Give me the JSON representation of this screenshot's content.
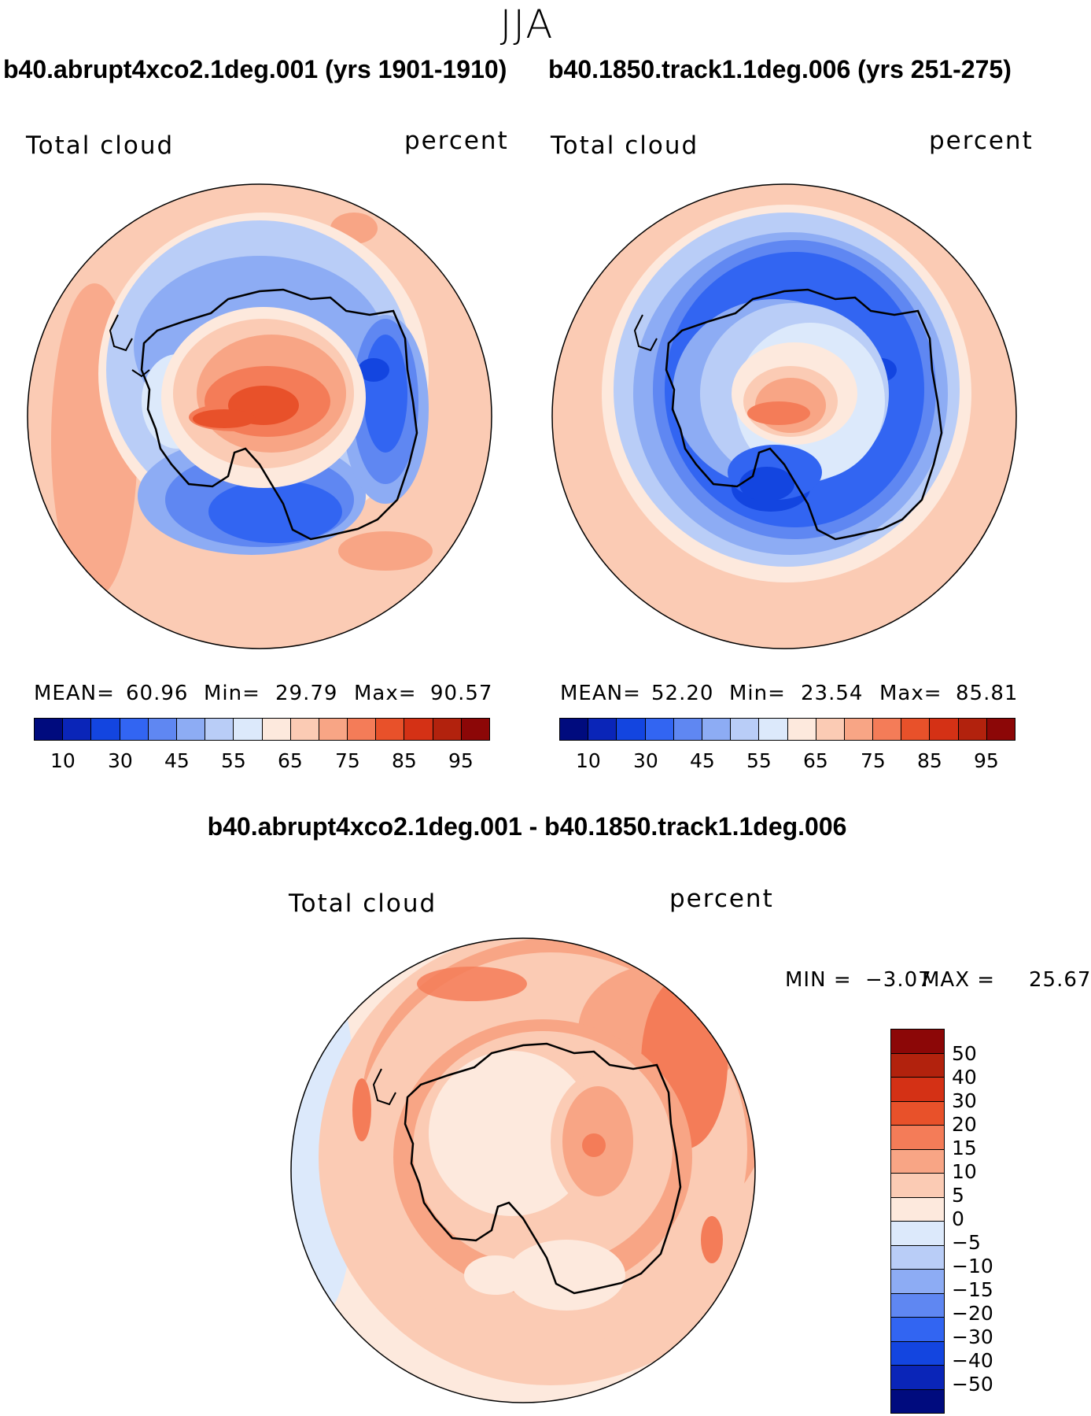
{
  "season": "JJA",
  "panels": [
    {
      "case_title": "b40.abrupt4xco2.1deg.001 (yrs 1901-1910)",
      "variable": "Total cloud",
      "units": "percent",
      "mean_label": "MEAN=",
      "mean": "60.96",
      "min_label": "Min=",
      "min": "29.79",
      "max_label": "Max=",
      "max": "90.57"
    },
    {
      "case_title": "b40.1850.track1.1deg.006 (yrs 251-275)",
      "variable": "Total cloud",
      "units": "percent",
      "mean_label": "MEAN=",
      "mean": "52.20",
      "min_label": "Min=",
      "min": "23.54",
      "max_label": "Max=",
      "max": "85.81"
    }
  ],
  "abs_colorbar": {
    "colors": [
      "#000b7e",
      "#0a25b8",
      "#1345e0",
      "#3265f2",
      "#5f87f2",
      "#8dacf4",
      "#b9cdf7",
      "#dce9fb",
      "#fde9dd",
      "#fbcbb4",
      "#f8a585",
      "#f47c58",
      "#e8512a",
      "#d43115",
      "#b2220d",
      "#8c0707"
    ],
    "labels": [
      "10",
      "30",
      "45",
      "55",
      "65",
      "75",
      "85",
      "95"
    ]
  },
  "diff": {
    "title": "b40.abrupt4xco2.1deg.001 - b40.1850.track1.1deg.006",
    "variable": "Total cloud",
    "units": "percent",
    "min_label": "MIN =",
    "min": "−3.07",
    "max_label": "MAX =",
    "max": "25.67"
  },
  "diff_colorbar": {
    "colors": [
      "#8c0707",
      "#b2220d",
      "#d43115",
      "#e8512a",
      "#f47c58",
      "#f8a585",
      "#fbcbb4",
      "#fde9dd",
      "#dce9fb",
      "#b9cdf7",
      "#8dacf4",
      "#5f87f2",
      "#3265f2",
      "#1345e0",
      "#0a25b8",
      "#000b7e"
    ],
    "labels": [
      "50",
      "40",
      "30",
      "20",
      "15",
      "10",
      "5",
      "0",
      "−5",
      "−10",
      "−15",
      "−20",
      "−30",
      "−40",
      "−50"
    ]
  }
}
